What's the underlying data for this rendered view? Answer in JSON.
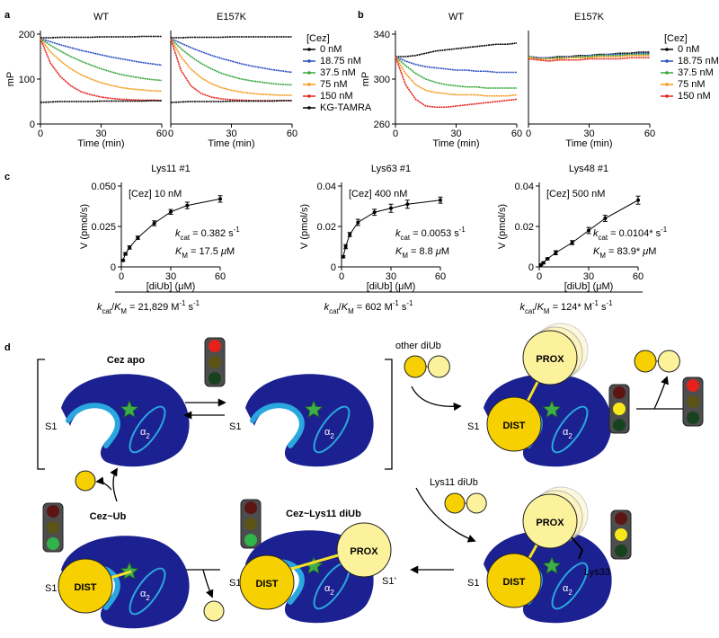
{
  "chart_data": [
    {
      "type": "line",
      "panel": "a",
      "title": "WT",
      "xlabel": "Time (min)",
      "ylabel": "mP",
      "x": [
        0,
        5,
        10,
        15,
        20,
        25,
        30,
        35,
        40,
        45,
        50,
        55,
        60
      ],
      "xlim": [
        0,
        60
      ],
      "xticks": [
        0,
        30,
        60
      ],
      "ylim": [
        0,
        200
      ],
      "yticks": [
        0,
        100,
        200
      ],
      "series": [
        {
          "color": "#000000",
          "values": [
            192,
            192,
            193,
            193,
            193,
            193,
            194,
            194,
            194,
            194,
            195,
            195,
            195
          ]
        },
        {
          "color": "#2b4fc4",
          "values": [
            190,
            183,
            176,
            170,
            164,
            159,
            154,
            149,
            145,
            141,
            137,
            134,
            131
          ]
        },
        {
          "color": "#35a83a",
          "values": [
            190,
            175,
            162,
            150,
            140,
            131,
            123,
            116,
            110,
            106,
            102,
            99,
            97
          ]
        },
        {
          "color": "#f39a1b",
          "values": [
            190,
            160,
            140,
            123,
            110,
            100,
            92,
            86,
            81,
            78,
            76,
            74,
            73
          ]
        },
        {
          "color": "#e4261f",
          "values": [
            190,
            135,
            105,
            85,
            72,
            65,
            60,
            57,
            55,
            54,
            53,
            53,
            52
          ]
        },
        {
          "color": "#000000",
          "values": [
            48,
            49,
            50,
            50,
            50,
            50,
            51,
            51,
            51,
            51,
            51,
            52,
            52
          ]
        }
      ]
    },
    {
      "type": "line",
      "title": "E157K",
      "xlabel": "Time (min)",
      "x": [
        0,
        5,
        10,
        15,
        20,
        25,
        30,
        35,
        40,
        45,
        50,
        55,
        60
      ],
      "xlim": [
        0,
        60
      ],
      "xticks": [
        0,
        30,
        60
      ],
      "ylim": [
        0,
        200
      ],
      "legend": "right",
      "legend_title": "[Cez]",
      "series": [
        {
          "name": "0 nM",
          "color": "#000000",
          "values": [
            192,
            192,
            193,
            193,
            193,
            193,
            194,
            194,
            194,
            194,
            194,
            194,
            194
          ]
        },
        {
          "name": "18.75 nM",
          "color": "#2b4fc4",
          "values": [
            190,
            180,
            170,
            161,
            153,
            146,
            140,
            134,
            129,
            125,
            121,
            118,
            115
          ]
        },
        {
          "name": "37.5 nM",
          "color": "#35a83a",
          "values": [
            190,
            168,
            150,
            135,
            123,
            113,
            106,
            100,
            96,
            93,
            90,
            88,
            87
          ]
        },
        {
          "name": "75 nM",
          "color": "#f39a1b",
          "values": [
            190,
            150,
            122,
            103,
            90,
            81,
            75,
            71,
            68,
            66,
            65,
            64,
            64
          ]
        },
        {
          "name": "150 nM",
          "color": "#e4261f",
          "values": [
            190,
            120,
            85,
            68,
            60,
            56,
            54,
            53,
            52,
            52,
            52,
            52,
            52
          ]
        },
        {
          "name": "KG-TAMRA",
          "color": "#000000",
          "values": [
            48,
            49,
            50,
            50,
            50,
            50,
            51,
            51,
            51,
            51,
            51,
            52,
            52
          ]
        }
      ]
    },
    {
      "type": "line",
      "panel": "b",
      "title": "WT",
      "xlabel": "Time (min)",
      "ylabel": "mP",
      "x": [
        0,
        5,
        10,
        15,
        20,
        25,
        30,
        35,
        40,
        45,
        50,
        55,
        60
      ],
      "xlim": [
        0,
        60
      ],
      "xticks": [
        0,
        30,
        60
      ],
      "ylim": [
        260,
        340
      ],
      "yticks": [
        260,
        300,
        340
      ],
      "series": [
        {
          "color": "#000000",
          "values": [
            320,
            320,
            321,
            323,
            325,
            326,
            327,
            328,
            329,
            330,
            331,
            331,
            332
          ]
        },
        {
          "color": "#2b4fc4",
          "values": [
            320,
            316,
            313,
            311,
            310,
            309,
            308,
            308,
            307,
            307,
            306,
            306,
            306
          ]
        },
        {
          "color": "#35a83a",
          "values": [
            320,
            312,
            305,
            300,
            297,
            295,
            294,
            293,
            293,
            292,
            292,
            292,
            292
          ]
        },
        {
          "color": "#f39a1b",
          "values": [
            320,
            305,
            295,
            290,
            288,
            287,
            286,
            286,
            286,
            285,
            285,
            285,
            286
          ]
        },
        {
          "color": "#e4261f",
          "values": [
            320,
            295,
            282,
            276,
            275,
            275,
            276,
            277,
            278,
            279,
            280,
            281,
            282
          ]
        }
      ]
    },
    {
      "type": "line",
      "title": "E157K",
      "xlabel": "Time (min)",
      "x": [
        0,
        5,
        10,
        15,
        20,
        25,
        30,
        35,
        40,
        45,
        50,
        55,
        60
      ],
      "xlim": [
        0,
        60
      ],
      "xticks": [
        0,
        30,
        60
      ],
      "ylim": [
        260,
        340
      ],
      "legend": "right",
      "legend_title": "[Cez]",
      "series": [
        {
          "name": "0 nM",
          "color": "#000000",
          "values": [
            320,
            319,
            319,
            320,
            320,
            321,
            321,
            322,
            322,
            323,
            323,
            324,
            324
          ]
        },
        {
          "name": "18.75 nM",
          "color": "#2b4fc4",
          "values": [
            320,
            319,
            319,
            319,
            320,
            320,
            321,
            321,
            322,
            322,
            322,
            323,
            323
          ]
        },
        {
          "name": "37.5 nM",
          "color": "#35a83a",
          "values": [
            320,
            318,
            318,
            319,
            319,
            320,
            320,
            321,
            321,
            321,
            322,
            322,
            322
          ]
        },
        {
          "name": "75 nM",
          "color": "#f39a1b",
          "values": [
            319,
            318,
            318,
            318,
            319,
            319,
            319,
            320,
            320,
            320,
            321,
            321,
            321
          ]
        },
        {
          "name": "150 nM",
          "color": "#e4261f",
          "values": [
            318,
            317,
            316,
            317,
            317,
            317,
            318,
            318,
            318,
            318,
            319,
            319,
            319
          ]
        }
      ]
    },
    {
      "type": "scatter",
      "panel": "c",
      "title": "Lys11 #1",
      "xlabel": "[diUb] (μM)",
      "ylabel": "V (pmol/s)",
      "x": [
        1,
        2.5,
        5,
        10,
        20,
        30,
        40,
        60
      ],
      "xlim": [
        0,
        60
      ],
      "xticks": [
        0,
        30,
        60
      ],
      "ylim": [
        0,
        0.05
      ],
      "yticks": [
        0,
        0.025,
        {
          "value": 0.05,
          "label": "0.050"
        }
      ],
      "series": [
        {
          "color": "#000000",
          "values": [
            0.004,
            0.008,
            0.012,
            0.018,
            0.027,
            0.034,
            0.038,
            0.042
          ],
          "errors": [
            0.0005,
            0.0008,
            0.001,
            0.001,
            0.0015,
            0.0015,
            0.002,
            0.002
          ]
        }
      ],
      "annotations": [
        [
          {
            "t": "[Cez] 10 nM"
          }
        ],
        [
          {
            "i": "k"
          },
          {
            "sub": "cat"
          },
          {
            "t": " = 0.382 s"
          },
          {
            "sup": "-1"
          }
        ],
        [
          {
            "i": "K"
          },
          {
            "sub": "M"
          },
          {
            "t": " = 17.5 "
          },
          {
            "i": "μ"
          },
          {
            "t": "M"
          }
        ]
      ],
      "footnote": [
        {
          "i": "k"
        },
        {
          "sub": "cat"
        },
        {
          "t": "/"
        },
        {
          "i": "K"
        },
        {
          "sub": "M"
        },
        {
          "t": " = 21,829 M"
        },
        {
          "sup": "-1"
        },
        {
          "t": " s"
        },
        {
          "sup": "-1"
        }
      ]
    },
    {
      "type": "scatter",
      "title": "Lys63 #1",
      "xlabel": "[diUb] (μM)",
      "ylabel": "V (pmol/s)",
      "x": [
        1,
        2.5,
        5,
        10,
        20,
        30,
        40,
        60
      ],
      "xlim": [
        0,
        60
      ],
      "xticks": [
        0,
        30,
        60
      ],
      "ylim": [
        0,
        0.04
      ],
      "yticks": [
        0,
        0.02,
        0.04
      ],
      "series": [
        {
          "color": "#000000",
          "values": [
            0.005,
            0.01,
            0.016,
            0.022,
            0.027,
            0.029,
            0.031,
            0.033
          ],
          "errors": [
            0.0005,
            0.001,
            0.001,
            0.0015,
            0.0015,
            0.002,
            0.002,
            0.0015
          ]
        }
      ],
      "annotations": [
        [
          {
            "t": "[Cez] 400 nM"
          }
        ],
        [
          {
            "i": "k"
          },
          {
            "sub": "cat"
          },
          {
            "t": " = 0.0053 s"
          },
          {
            "sup": "-1"
          }
        ],
        [
          {
            "i": "K"
          },
          {
            "sub": "M"
          },
          {
            "t": " = 8.8 "
          },
          {
            "i": "μ"
          },
          {
            "t": "M"
          }
        ]
      ],
      "footnote": [
        {
          "i": "k"
        },
        {
          "sub": "cat"
        },
        {
          "t": "/"
        },
        {
          "i": "K"
        },
        {
          "sub": "M"
        },
        {
          "t": " = 602 M"
        },
        {
          "sup": "-1"
        },
        {
          "t": " s"
        },
        {
          "sup": "-1"
        }
      ]
    },
    {
      "type": "scatter",
      "title": "Lys48 #1",
      "xlabel": "[diUb] (μM)",
      "ylabel": "V (pmol/s)",
      "x": [
        1,
        2.5,
        5,
        10,
        20,
        30,
        40,
        60
      ],
      "xlim": [
        0,
        60
      ],
      "xticks": [
        0,
        30,
        60
      ],
      "ylim": [
        0,
        0.04
      ],
      "yticks": [
        0,
        0.02,
        0.04
      ],
      "series": [
        {
          "color": "#000000",
          "values": [
            0.001,
            0.002,
            0.004,
            0.007,
            0.012,
            0.018,
            0.024,
            0.033
          ],
          "errors": [
            0.0003,
            0.0005,
            0.0005,
            0.001,
            0.001,
            0.0015,
            0.0015,
            0.002
          ]
        }
      ],
      "annotations": [
        [
          {
            "t": "[Cez] 500 nM"
          }
        ],
        [
          {
            "i": "k"
          },
          {
            "sub": "cat"
          },
          {
            "t": " = 0.0104* s"
          },
          {
            "sup": "-1"
          }
        ],
        [
          {
            "i": "K"
          },
          {
            "sub": "M"
          },
          {
            "t": " = 83.9* "
          },
          {
            "i": "μ"
          },
          {
            "t": "M"
          }
        ]
      ],
      "footnote": [
        {
          "i": "k"
        },
        {
          "sub": "cat"
        },
        {
          "t": "/"
        },
        {
          "i": "K"
        },
        {
          "sub": "M"
        },
        {
          "t": " = 124* M"
        },
        {
          "sup": "-1"
        },
        {
          "t": " s"
        },
        {
          "sup": "-1"
        }
      ]
    }
  ],
  "diagram": {
    "panel": "d",
    "substrates": [
      "other diUb",
      "Lys11 diUb"
    ],
    "states": [
      {
        "title": "Cez apo",
        "site": "S1",
        "helix": [
          {
            "t": "α"
          },
          {
            "sub": "2"
          }
        ]
      },
      {
        "site": "S1",
        "helix": [
          {
            "t": "α"
          },
          {
            "sub": "2"
          }
        ]
      },
      {
        "site": "S1",
        "helix": [
          {
            "t": "α"
          },
          {
            "sub": "2"
          }
        ],
        "dist": "DIST",
        "prox": "PROX"
      },
      {
        "site": "S1",
        "helix": [
          {
            "t": "α"
          },
          {
            "sub": "2"
          }
        ],
        "dist": "DIST",
        "prox": "PROX",
        "residue": "Lys33"
      },
      {
        "title": "Cez~Lys11 diUb",
        "site": "S1",
        "site2": "S1’",
        "helix": [
          {
            "t": "α"
          },
          {
            "sub": "2"
          }
        ],
        "dist": "DIST",
        "prox": "PROX"
      },
      {
        "title": "Cez~Ub",
        "site": "S1",
        "helix": [
          {
            "t": "α"
          },
          {
            "sub": "2"
          }
        ],
        "dist": "DIST"
      }
    ]
  }
}
